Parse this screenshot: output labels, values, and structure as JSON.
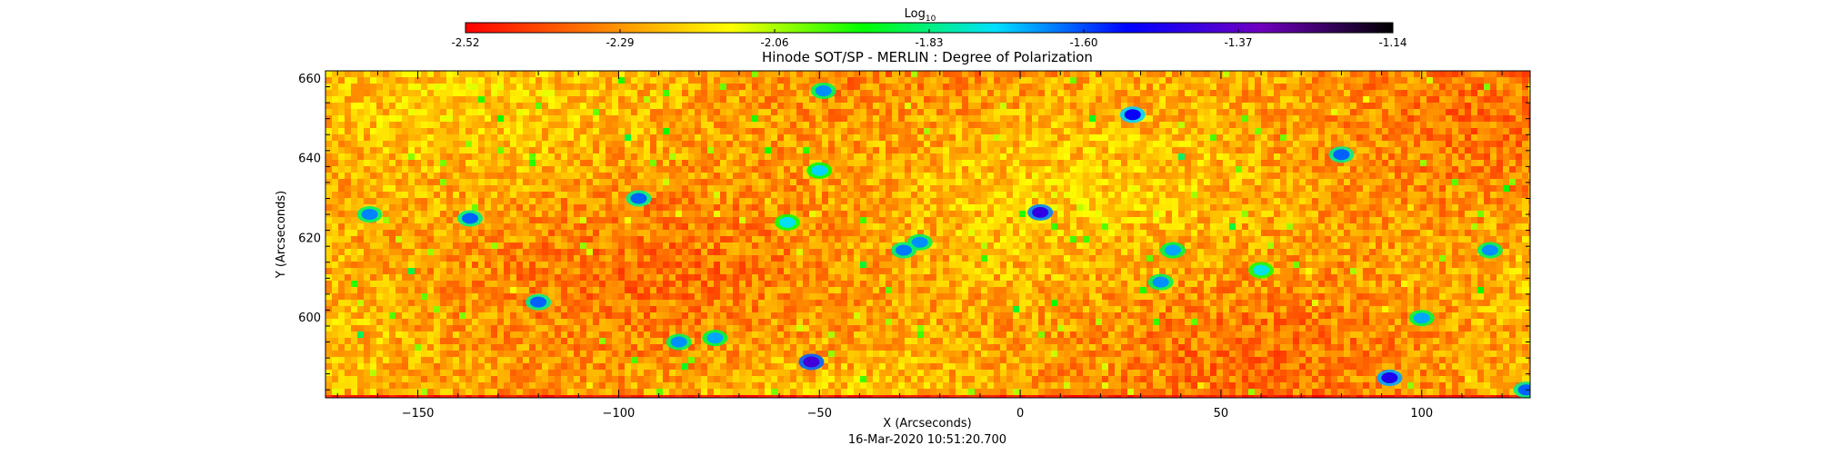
{
  "chart_data": {
    "type": "heatmap",
    "title": "Hinode SOT/SP - MERLIN : Degree of Polarization",
    "xlabel": "X (Arcseconds)",
    "ylabel": "Y (Arcseconds)",
    "timestamp": "16-Mar-2020 10:51:20.700",
    "xlim": [
      -173,
      127
    ],
    "ylim": [
      580,
      662
    ],
    "x_ticks": [
      -150,
      -100,
      -50,
      0,
      50,
      100
    ],
    "y_ticks": [
      600,
      620,
      640,
      660
    ],
    "grid": false,
    "colorbar": {
      "label": "Log",
      "label_subscript": "10",
      "placement": "top",
      "range": [
        -2.52,
        -1.14
      ],
      "ticks": [
        "-2.52",
        "-2.29",
        "-2.06",
        "-1.83",
        "-1.60",
        "-1.37",
        "-1.14"
      ],
      "colormap": [
        "#ff0000",
        "#ff8000",
        "#ffff00",
        "#00ff00",
        "#00e0ff",
        "#0000ff",
        "#7000c0",
        "#000000"
      ]
    },
    "typical_value": -2.27,
    "features": [
      {
        "x": 5,
        "y": 626.5,
        "value": -1.45
      },
      {
        "x": -52,
        "y": 589,
        "value": -1.42
      },
      {
        "x": 92,
        "y": 585,
        "value": -1.48
      },
      {
        "x": 28,
        "y": 651,
        "value": -1.52
      },
      {
        "x": -95,
        "y": 630,
        "value": -1.62
      },
      {
        "x": -137,
        "y": 625,
        "value": -1.62
      },
      {
        "x": -162,
        "y": 626,
        "value": -1.65
      },
      {
        "x": -25,
        "y": 619,
        "value": -1.66
      },
      {
        "x": -29,
        "y": 617,
        "value": -1.64
      },
      {
        "x": -120,
        "y": 604,
        "value": -1.62
      },
      {
        "x": -85,
        "y": 594,
        "value": -1.66
      },
      {
        "x": -76,
        "y": 595,
        "value": -1.68
      },
      {
        "x": -49,
        "y": 657,
        "value": -1.66
      },
      {
        "x": 38,
        "y": 617,
        "value": -1.68
      },
      {
        "x": 35,
        "y": 609,
        "value": -1.66
      },
      {
        "x": 80,
        "y": 641,
        "value": -1.62
      },
      {
        "x": 100,
        "y": 600,
        "value": -1.68
      },
      {
        "x": 117,
        "y": 617,
        "value": -1.66
      },
      {
        "x": 126,
        "y": 582,
        "value": -1.62
      },
      {
        "x": -58,
        "y": 624,
        "value": -1.74
      },
      {
        "x": -50,
        "y": 637,
        "value": -1.72
      },
      {
        "x": 60,
        "y": 612,
        "value": -1.75
      }
    ]
  }
}
